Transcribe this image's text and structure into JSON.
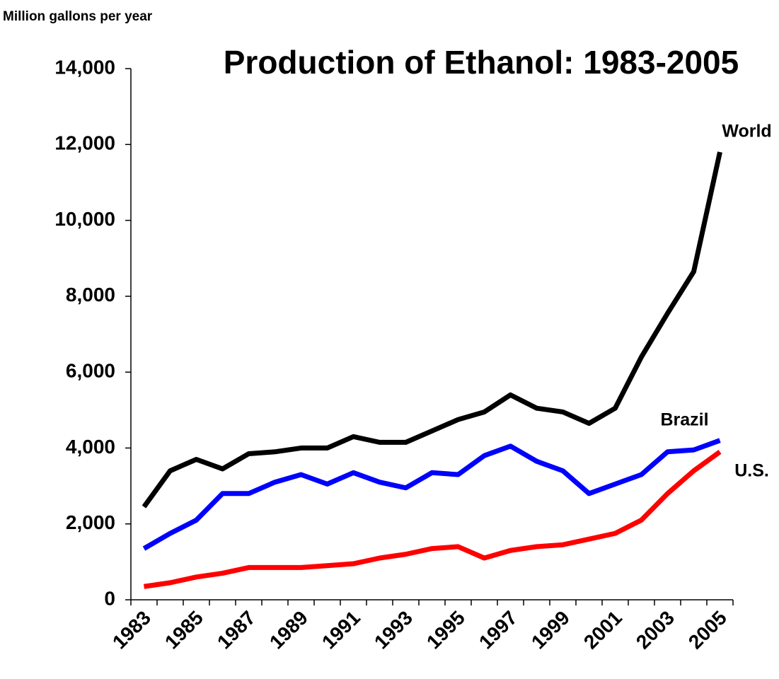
{
  "chart_data": {
    "type": "line",
    "title": "Production of Ethanol: 1983-2005",
    "y_label": "Million gallons per year",
    "categories": [
      "1983",
      null,
      "1985",
      null,
      "1987",
      null,
      "1989",
      null,
      "1991",
      null,
      "1993",
      null,
      "1995",
      null,
      "1997",
      null,
      "1999",
      null,
      "2001",
      null,
      "2003",
      null,
      "2005"
    ],
    "series": [
      {
        "name": "World",
        "color": "#000000",
        "values": [
          2450,
          3400,
          3700,
          3450,
          3850,
          3900,
          4000,
          4000,
          4300,
          4150,
          4150,
          4450,
          4750,
          4950,
          5400,
          5050,
          4950,
          4650,
          5050,
          6400,
          7550,
          8650,
          11800
        ]
      },
      {
        "name": "Brazil",
        "color": "#0000ff",
        "values": [
          1350,
          1750,
          2100,
          2800,
          2800,
          3100,
          3300,
          3050,
          3350,
          3100,
          2950,
          3350,
          3300,
          3800,
          4050,
          3650,
          3400,
          2800,
          3050,
          3300,
          3900,
          3950,
          4200
        ]
      },
      {
        "name": "U.S.",
        "color": "#ff0000",
        "values": [
          350,
          450,
          600,
          700,
          850,
          850,
          850,
          900,
          950,
          1100,
          1200,
          1350,
          1400,
          1100,
          1300,
          1400,
          1450,
          1600,
          1750,
          2100,
          2800,
          3400,
          3900
        ]
      }
    ],
    "ylim": [
      0,
      14000
    ],
    "yticks": [
      0,
      {
        "value": 2000,
        "label": "2,000"
      },
      {
        "value": 4000,
        "label": "4,000"
      },
      {
        "value": 6000,
        "label": "6,000"
      },
      {
        "value": 8000,
        "label": "8,000"
      },
      {
        "value": 10000,
        "label": "10,000"
      },
      {
        "value": 12000,
        "label": "12,000"
      },
      {
        "value": 14000,
        "label": "14,000"
      }
    ],
    "grid": false
  }
}
